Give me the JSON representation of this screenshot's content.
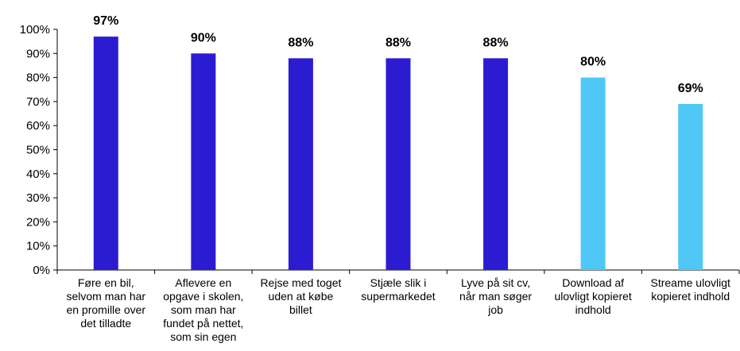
{
  "chart_data": {
    "type": "bar",
    "categories": [
      "Føre en bil, selvom man har en promille over det tilladte",
      "Aflevere en opgave i skolen, som man har fundet på nettet, som sin egen",
      "Rejse med toget uden at købe billet",
      "Stjæle slik i supermarkedet",
      "Lyve på sit cv, når man søger job",
      "Download af ulovligt kopieret indhold",
      "Streame ulovligt kopieret indhold"
    ],
    "category_lines": [
      [
        "Føre en bil,",
        "selvom man har",
        "en promille over",
        "det tilladte"
      ],
      [
        "Aflevere en",
        "opgave i skolen,",
        "som man har",
        "fundet på nettet,",
        "som sin egen"
      ],
      [
        "Rejse med toget",
        "uden at købe",
        "billet"
      ],
      [
        "Stjæle slik i",
        "supermarkedet"
      ],
      [
        "Lyve på sit cv,",
        "når man søger",
        "job"
      ],
      [
        "Download af",
        "ulovligt kopieret",
        "indhold"
      ],
      [
        "Streame ulovligt",
        "kopieret indhold"
      ]
    ],
    "values": [
      97,
      90,
      88,
      88,
      88,
      80,
      69
    ],
    "data_labels": [
      "97%",
      "90%",
      "88%",
      "88%",
      "88%",
      "80%",
      "69%"
    ],
    "bar_colors": [
      "#2c1cd1",
      "#2c1cd1",
      "#2c1cd1",
      "#2c1cd1",
      "#2c1cd1",
      "#4fc8f7",
      "#4fc8f7"
    ],
    "y_ticks": [
      "0%",
      "10%",
      "20%",
      "30%",
      "40%",
      "50%",
      "60%",
      "70%",
      "80%",
      "90%",
      "100%"
    ],
    "ylim": [
      0,
      100
    ],
    "grid": false,
    "legend": "none"
  }
}
